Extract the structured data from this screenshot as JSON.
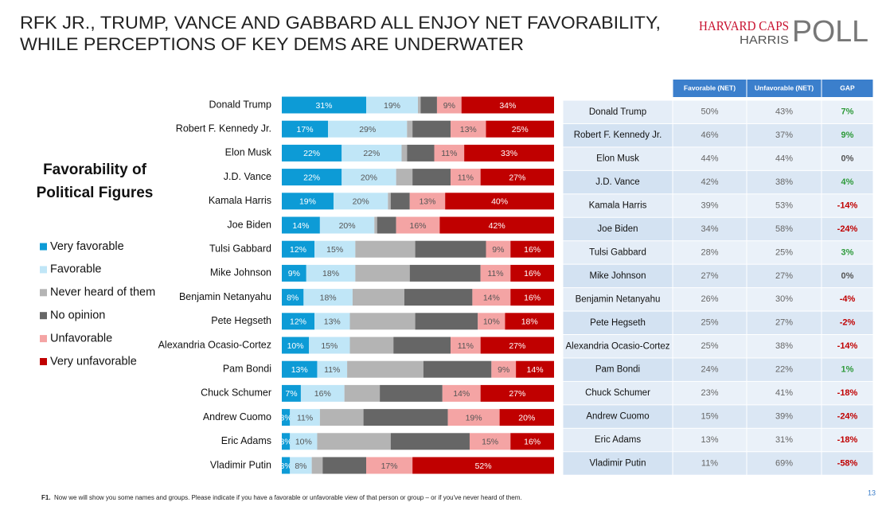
{
  "title": [
    "RFK JR., TRUMP, VANCE AND GABBARD ALL ENJOY NET FAVORABILITY,",
    "WHILE PERCEPTIONS OF KEY DEMS ARE UNDERWATER"
  ],
  "logo": {
    "line1": "HARVARD CAPS",
    "line2": "HARRIS",
    "line3": "POLL"
  },
  "chart_data": {
    "type": "stacked_bar_horizontal",
    "subtitle": [
      "Favorability of",
      "Political Figures"
    ],
    "categories": [
      "Donald Trump",
      "Robert F. Kennedy Jr.",
      "Elon Musk",
      "J.D. Vance",
      "Kamala Harris",
      "Joe Biden",
      "Tulsi Gabbard",
      "Mike Johnson",
      "Benjamin Netanyahu",
      "Pete Hegseth",
      "Alexandria Ocasio-Cortez",
      "Pam Bondi",
      "Chuck Schumer",
      "Andrew Cuomo",
      "Eric Adams",
      "Vladimir Putin"
    ],
    "xlim": [
      0,
      100
    ],
    "series": [
      {
        "name": "Very favorable",
        "color": "#0d9bd6",
        "values": [
          31,
          17,
          22,
          22,
          19,
          14,
          12,
          9,
          8,
          12,
          10,
          13,
          7,
          3,
          3,
          3
        ],
        "value_labels": [
          "31%",
          "17%",
          "22%",
          "22%",
          "19%",
          "14%",
          "12%",
          "9%",
          "8%",
          "12%",
          "10%",
          "13%",
          "7%",
          "3%",
          "3%",
          "3%"
        ]
      },
      {
        "name": "Favorable",
        "color": "#c0e6f7",
        "values": [
          19,
          29,
          22,
          20,
          20,
          20,
          15,
          18,
          18,
          13,
          15,
          11,
          16,
          11,
          10,
          8
        ],
        "value_labels": [
          "19%",
          "29%",
          "22%",
          "20%",
          "20%",
          "20%",
          "15%",
          "18%",
          "18%",
          "13%",
          "15%",
          "11%",
          "16%",
          "11%",
          "10%",
          "8%"
        ]
      },
      {
        "name": "Never heard of them",
        "color": "#b4b4b4",
        "values": [
          1,
          2,
          2,
          6,
          1,
          1,
          22,
          20,
          19,
          24,
          16,
          28,
          13,
          16,
          27,
          4
        ]
      },
      {
        "name": "No opinion",
        "color": "#666666",
        "values": [
          6,
          14,
          10,
          14,
          7,
          7,
          26,
          26,
          25,
          23,
          21,
          25,
          23,
          31,
          29,
          16
        ]
      },
      {
        "name": "Unfavorable",
        "color": "#f4a4a4",
        "values": [
          9,
          13,
          11,
          11,
          13,
          16,
          9,
          11,
          14,
          10,
          11,
          9,
          14,
          19,
          15,
          17
        ],
        "value_labels": [
          "9%",
          "13%",
          "11%",
          "11%",
          "13%",
          "16%",
          "9%",
          "11%",
          "14%",
          "10%",
          "11%",
          "9%",
          "14%",
          "19%",
          "15%",
          "17%"
        ]
      },
      {
        "name": "Very unfavorable",
        "color": "#c00000",
        "values": [
          34,
          25,
          33,
          27,
          40,
          42,
          16,
          16,
          16,
          18,
          27,
          14,
          27,
          20,
          16,
          52
        ],
        "value_labels": [
          "34%",
          "25%",
          "33%",
          "27%",
          "40%",
          "42%",
          "16%",
          "16%",
          "16%",
          "18%",
          "27%",
          "14%",
          "27%",
          "20%",
          "16%",
          "52%"
        ]
      }
    ]
  },
  "table": {
    "columns": [
      "Favorable (NET)",
      "Unfavorable (NET)",
      "GAP"
    ],
    "rows": [
      [
        "50%",
        "43%",
        "7%"
      ],
      [
        "46%",
        "37%",
        "9%"
      ],
      [
        "44%",
        "44%",
        "0%"
      ],
      [
        "42%",
        "38%",
        "4%"
      ],
      [
        "39%",
        "53%",
        "-14%"
      ],
      [
        "34%",
        "58%",
        "-24%"
      ],
      [
        "28%",
        "25%",
        "3%"
      ],
      [
        "27%",
        "27%",
        "0%"
      ],
      [
        "26%",
        "30%",
        "-4%"
      ],
      [
        "25%",
        "27%",
        "-2%"
      ],
      [
        "25%",
        "38%",
        "-14%"
      ],
      [
        "24%",
        "22%",
        "1%"
      ],
      [
        "23%",
        "41%",
        "-18%"
      ],
      [
        "15%",
        "39%",
        "-24%"
      ],
      [
        "13%",
        "31%",
        "-18%"
      ],
      [
        "11%",
        "69%",
        "-58%"
      ]
    ]
  },
  "footnote": {
    "label": "F1.",
    "text": "Now we will show you some names and groups. Please indicate if you have a favorable or unfavorable view of that person or group – or if you've never heard of them."
  },
  "page_number": "13"
}
